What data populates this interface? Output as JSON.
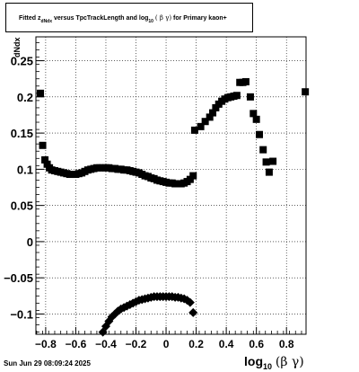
{
  "chart_data": {
    "type": "scatter",
    "title": {
      "pre": "Fitted",
      "z": "z",
      "z_sub": "dNdx",
      "mid": "versus TpcTrackLength and log",
      "log_sub": "10",
      "bg": "( β γ)",
      "post": "for Primary kaon+"
    },
    "ylabel": "dNdx",
    "xlabel": {
      "log": "log",
      "sub": "10",
      "bg": "(β γ)"
    },
    "xlim": [
      -0.865,
      0.93
    ],
    "ylim": [
      -0.128,
      0.283
    ],
    "x_ticks": [
      "−0.8",
      "−0.6",
      "−0.4",
      "−0.2",
      "0",
      "0.2",
      "0.4",
      "0.6",
      "0.8"
    ],
    "y_ticks": [
      "−0.1",
      "−0.05",
      "0",
      "0.05",
      "0.1",
      "0.15",
      "0.2",
      "0.25"
    ],
    "grid": true,
    "series": [
      {
        "marker": "square",
        "points": [
          [
            -0.835,
            0.205
          ],
          [
            -0.82,
            0.133
          ],
          [
            -0.805,
            0.113
          ],
          [
            -0.79,
            0.107
          ],
          [
            -0.775,
            0.102
          ],
          [
            -0.76,
            0.099
          ],
          [
            -0.74,
            0.098
          ],
          [
            -0.72,
            0.097
          ],
          [
            -0.7,
            0.096
          ],
          [
            -0.68,
            0.095
          ],
          [
            -0.66,
            0.094
          ],
          [
            -0.64,
            0.093
          ],
          [
            -0.62,
            0.093
          ],
          [
            -0.6,
            0.093
          ],
          [
            -0.58,
            0.094
          ],
          [
            -0.56,
            0.095
          ],
          [
            -0.54,
            0.097
          ],
          [
            -0.52,
            0.099
          ],
          [
            -0.5,
            0.1
          ],
          [
            -0.48,
            0.101
          ],
          [
            -0.46,
            0.102
          ],
          [
            -0.44,
            0.102
          ],
          [
            -0.42,
            0.102
          ],
          [
            -0.4,
            0.102
          ],
          [
            -0.38,
            0.102
          ],
          [
            -0.36,
            0.101
          ],
          [
            -0.34,
            0.101
          ],
          [
            -0.32,
            0.1
          ],
          [
            -0.3,
            0.1
          ],
          [
            -0.28,
            0.099
          ],
          [
            -0.26,
            0.099
          ],
          [
            -0.24,
            0.098
          ],
          [
            -0.22,
            0.097
          ],
          [
            -0.2,
            0.096
          ],
          [
            -0.18,
            0.095
          ],
          [
            -0.16,
            0.093
          ],
          [
            -0.14,
            0.091
          ],
          [
            -0.12,
            0.09
          ],
          [
            -0.1,
            0.088
          ],
          [
            -0.08,
            0.087
          ],
          [
            -0.06,
            0.085
          ],
          [
            -0.04,
            0.084
          ],
          [
            -0.02,
            0.083
          ],
          [
            0.0,
            0.082
          ],
          [
            0.02,
            0.081
          ],
          [
            0.04,
            0.081
          ],
          [
            0.06,
            0.08
          ],
          [
            0.08,
            0.08
          ],
          [
            0.1,
            0.08
          ],
          [
            0.12,
            0.081
          ],
          [
            0.14,
            0.083
          ],
          [
            0.16,
            0.086
          ],
          [
            0.18,
            0.091
          ],
          [
            0.19,
            0.154
          ],
          [
            0.23,
            0.159
          ],
          [
            0.26,
            0.166
          ],
          [
            0.29,
            0.172
          ],
          [
            0.31,
            0.178
          ],
          [
            0.33,
            0.185
          ],
          [
            0.35,
            0.19
          ],
          [
            0.37,
            0.194
          ],
          [
            0.39,
            0.197
          ],
          [
            0.41,
            0.199
          ],
          [
            0.43,
            0.2
          ],
          [
            0.45,
            0.201
          ],
          [
            0.47,
            0.202
          ],
          [
            0.49,
            0.22
          ],
          [
            0.51,
            0.22
          ],
          [
            0.53,
            0.221
          ],
          [
            0.56,
            0.2
          ],
          [
            0.58,
            0.177
          ],
          [
            0.6,
            0.169
          ],
          [
            0.62,
            0.148
          ],
          [
            0.645,
            0.127
          ],
          [
            0.665,
            0.11
          ],
          [
            0.685,
            0.096
          ],
          [
            0.71,
            0.111
          ],
          [
            0.925,
            0.207
          ]
        ]
      },
      {
        "marker": "diamond",
        "points": [
          [
            -0.42,
            -0.125
          ],
          [
            -0.4,
            -0.117
          ],
          [
            -0.38,
            -0.11
          ],
          [
            -0.36,
            -0.104
          ],
          [
            -0.34,
            -0.1
          ],
          [
            -0.32,
            -0.096
          ],
          [
            -0.3,
            -0.093
          ],
          [
            -0.28,
            -0.091
          ],
          [
            -0.26,
            -0.089
          ],
          [
            -0.24,
            -0.087
          ],
          [
            -0.22,
            -0.085
          ],
          [
            -0.2,
            -0.083
          ],
          [
            -0.18,
            -0.081
          ],
          [
            -0.16,
            -0.08
          ],
          [
            -0.14,
            -0.079
          ],
          [
            -0.12,
            -0.078
          ],
          [
            -0.1,
            -0.077
          ],
          [
            -0.08,
            -0.076
          ],
          [
            -0.06,
            -0.076
          ],
          [
            -0.04,
            -0.076
          ],
          [
            -0.02,
            -0.076
          ],
          [
            0.0,
            -0.076
          ],
          [
            0.02,
            -0.076
          ],
          [
            0.04,
            -0.076
          ],
          [
            0.06,
            -0.077
          ],
          [
            0.08,
            -0.077
          ],
          [
            0.1,
            -0.078
          ],
          [
            0.12,
            -0.079
          ],
          [
            0.14,
            -0.081
          ],
          [
            0.16,
            -0.084
          ],
          [
            0.18,
            -0.098
          ]
        ]
      }
    ]
  },
  "footer": {
    "datestamp": "Sun Jun 29 08:09:24 2025"
  }
}
